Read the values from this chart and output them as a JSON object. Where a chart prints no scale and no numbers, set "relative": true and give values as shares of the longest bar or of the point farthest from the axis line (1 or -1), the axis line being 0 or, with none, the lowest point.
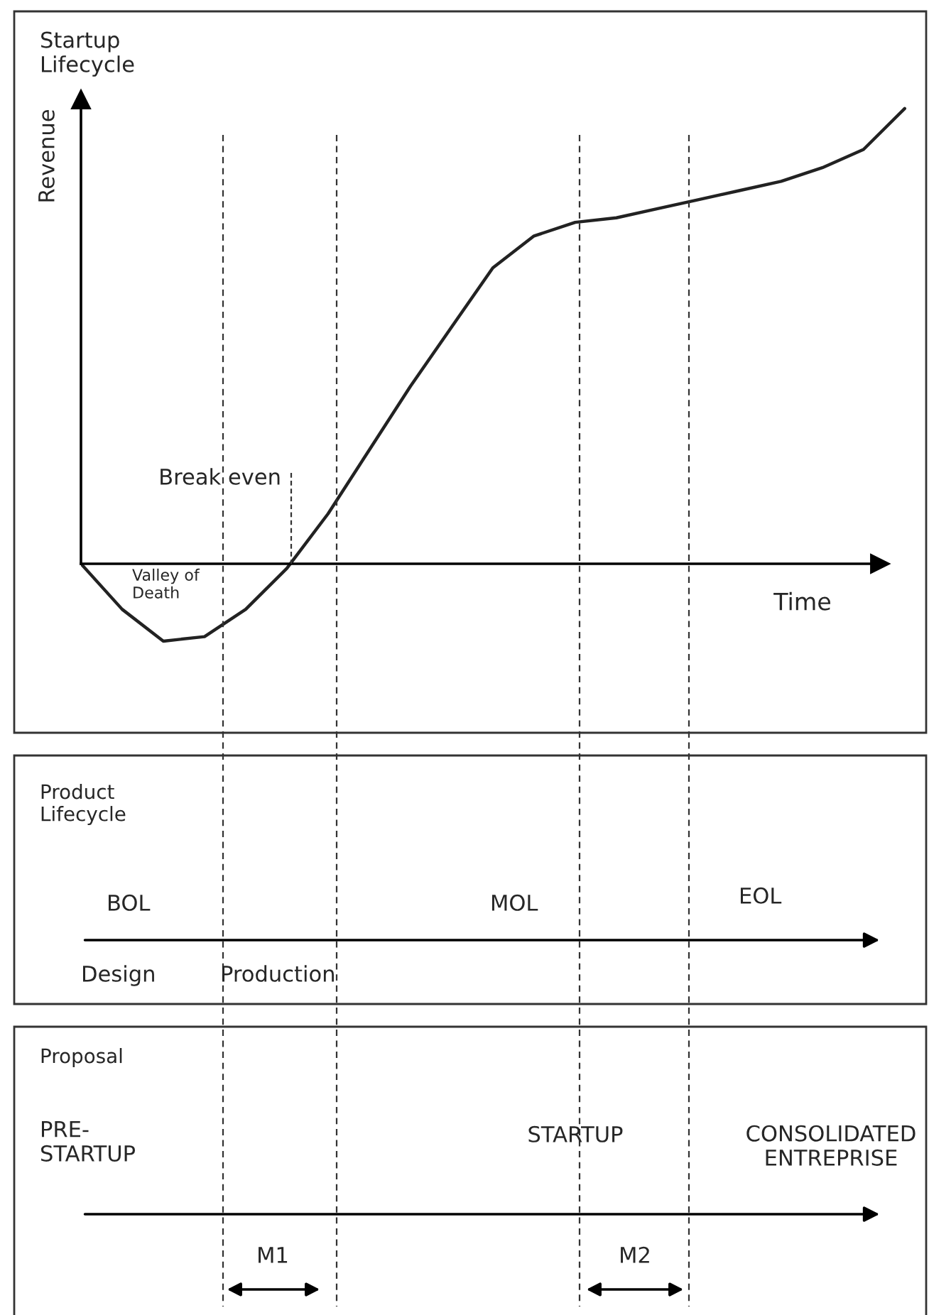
{
  "chart_data": [
    {
      "type": "line",
      "title": "Startup\nLifecycle",
      "ylabel": "Revenue",
      "xlabel": "Time",
      "relative": true,
      "grid": false,
      "legend": false,
      "categories": [
        null,
        null,
        null,
        null,
        null,
        null,
        null,
        null,
        null,
        null,
        null,
        null,
        null,
        null,
        null,
        null,
        null,
        null,
        null,
        null,
        null
      ],
      "series": [
        {
          "color": "#222222",
          "values": [
            0,
            -0.1,
            -0.17,
            -0.16,
            -0.1,
            -0.01,
            0.11,
            0.25,
            0.39,
            0.52,
            0.65,
            0.72,
            0.75,
            0.76,
            0.78,
            0.8,
            0.82,
            0.84,
            0.87,
            0.91,
            1
          ]
        }
      ],
      "annotations": [
        "Break even",
        "Valley of\nDeath"
      ]
    },
    {
      "type": "other",
      "title": "Product\nLifecycle",
      "annotations": [
        "BOL",
        "MOL",
        "EOL",
        "Design",
        "Production"
      ]
    },
    {
      "type": "other",
      "title": "Proposal",
      "annotations": [
        "PRE-\nSTARTUP",
        "STARTUP",
        "CONSOLIDATED\nENTREPRISE",
        "M1",
        "M2"
      ]
    }
  ]
}
